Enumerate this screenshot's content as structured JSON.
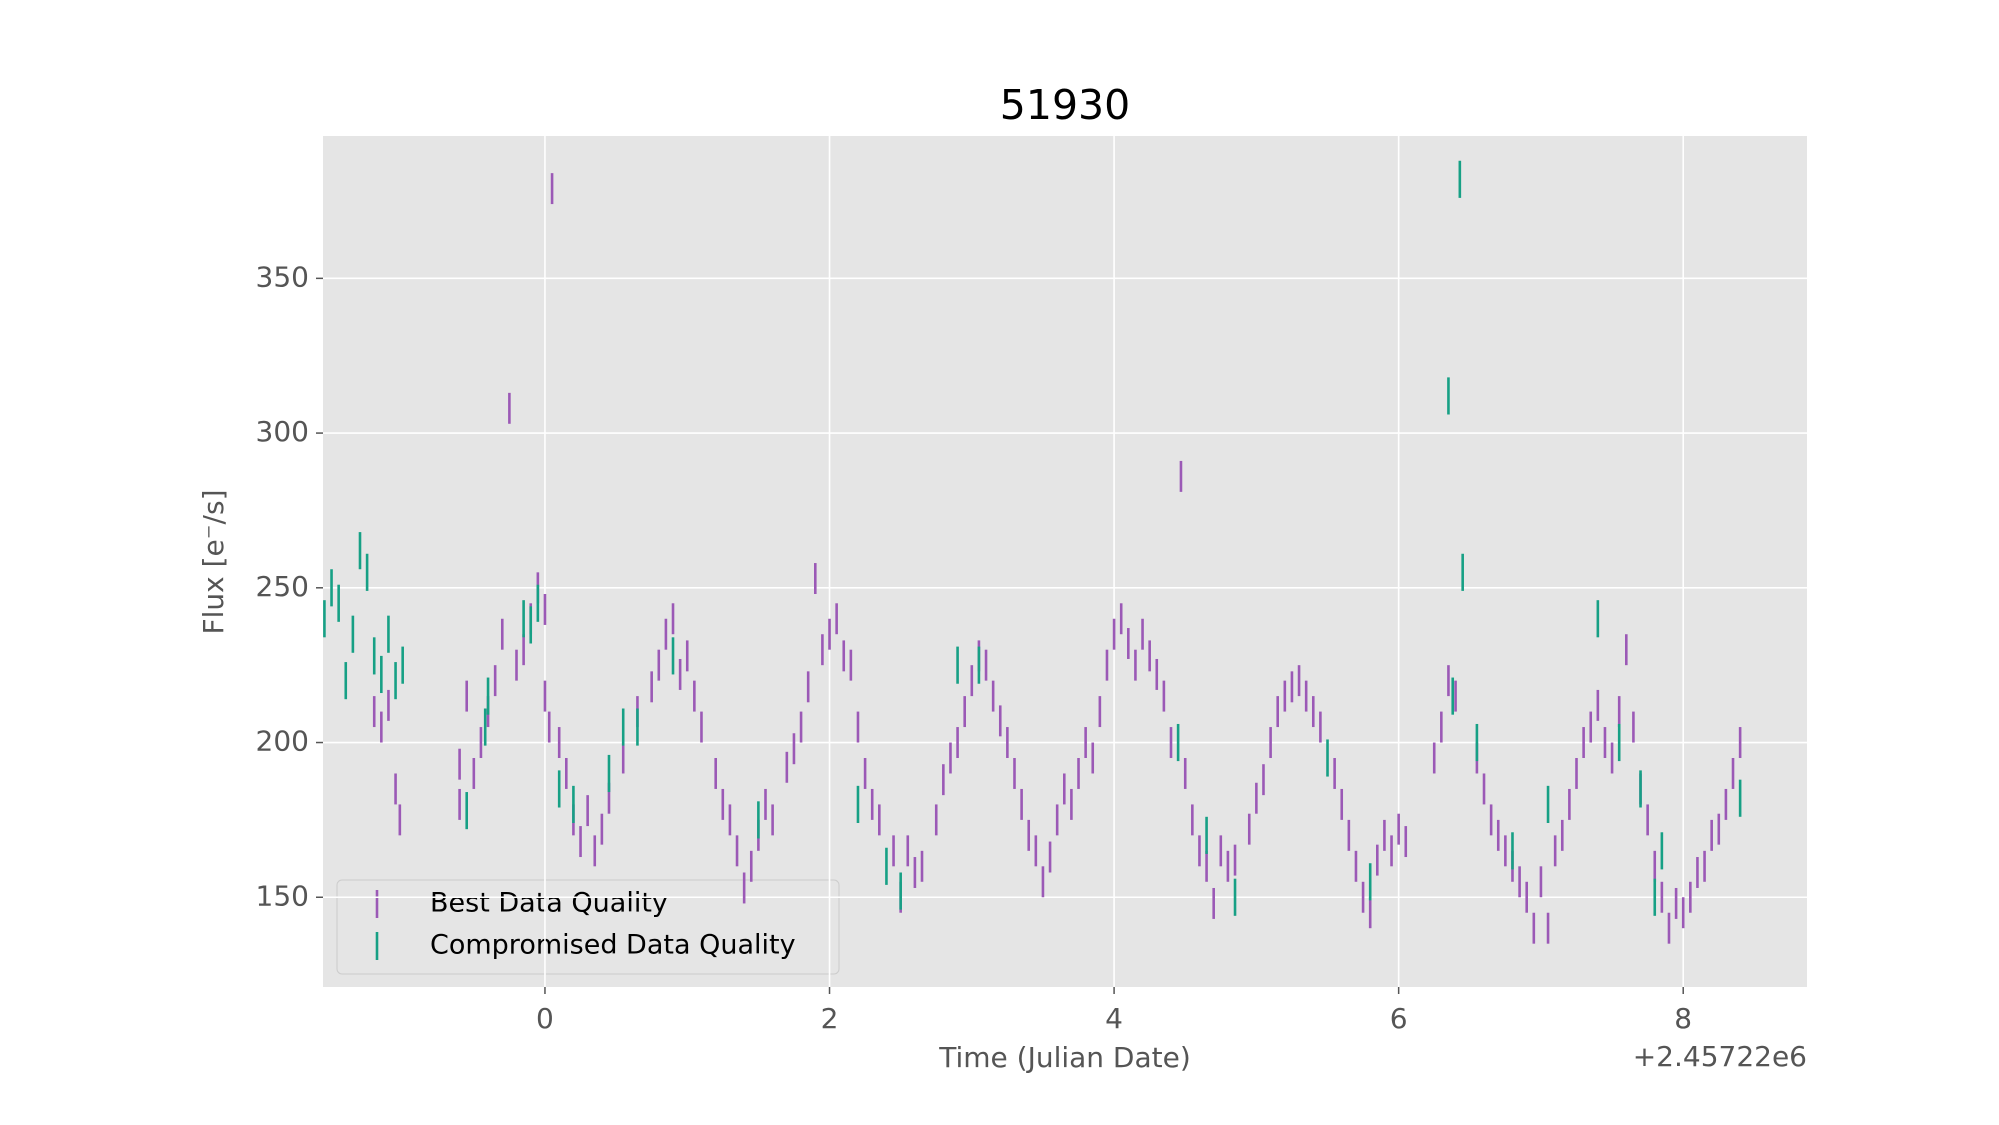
{
  "chart_data": {
    "type": "errorbar",
    "title": "51930",
    "x_label": "Time (Julian Date)",
    "y_label": "Flux [e⁻/s]",
    "x_offset_label": "+2.45722e6",
    "xlim": [
      -1.56,
      8.87
    ],
    "ylim": [
      121,
      396
    ],
    "xticks": [
      0,
      2,
      4,
      6,
      8
    ],
    "yticks": [
      150,
      200,
      250,
      300,
      350
    ],
    "grid": true,
    "legend": "lower left",
    "series": [
      {
        "name": "Best Data Quality",
        "color": "#9b59b6",
        "yerr": 5,
        "x": [
          -1.2,
          -1.15,
          -1.1,
          -1.05,
          -1.02,
          -0.6,
          -0.6,
          -0.55,
          -0.5,
          -0.45,
          -0.4,
          -0.35,
          -0.3,
          -0.25,
          -0.2,
          -0.15,
          -0.1,
          -0.05,
          0.0,
          0.0,
          0.03,
          0.05,
          0.1,
          0.15,
          0.2,
          0.25,
          0.3,
          0.35,
          0.4,
          0.45,
          0.55,
          0.65,
          0.75,
          0.8,
          0.85,
          0.9,
          0.95,
          1.0,
          1.05,
          1.1,
          1.2,
          1.25,
          1.3,
          1.35,
          1.4,
          1.45,
          1.5,
          1.55,
          1.6,
          1.7,
          1.75,
          1.8,
          1.85,
          1.9,
          1.95,
          2.0,
          2.05,
          2.1,
          2.15,
          2.2,
          2.25,
          2.3,
          2.35,
          2.45,
          2.5,
          2.55,
          2.6,
          2.65,
          2.75,
          2.8,
          2.85,
          2.9,
          2.95,
          3.0,
          3.05,
          3.1,
          3.15,
          3.2,
          3.25,
          3.3,
          3.35,
          3.4,
          3.45,
          3.5,
          3.55,
          3.6,
          3.65,
          3.7,
          3.75,
          3.8,
          3.85,
          3.9,
          3.95,
          4.0,
          4.05,
          4.1,
          4.15,
          4.2,
          4.25,
          4.3,
          4.35,
          4.4,
          4.47,
          4.5,
          4.55,
          4.6,
          4.65,
          4.7,
          4.75,
          4.8,
          4.85,
          4.95,
          5.0,
          5.05,
          5.1,
          5.15,
          5.2,
          5.25,
          5.3,
          5.35,
          5.4,
          5.45,
          5.55,
          5.6,
          5.65,
          5.7,
          5.75,
          5.8,
          5.85,
          5.9,
          5.95,
          6.0,
          6.05,
          6.25,
          6.3,
          6.35,
          6.4,
          6.55,
          6.6,
          6.65,
          6.7,
          6.75,
          6.8,
          6.85,
          6.9,
          6.95,
          7.0,
          7.05,
          7.1,
          7.15,
          7.2,
          7.25,
          7.3,
          7.35,
          7.4,
          7.45,
          7.5,
          7.55,
          7.6,
          7.65,
          7.7,
          7.75,
          7.8,
          7.85,
          7.9,
          7.95,
          8.0,
          8.05,
          8.1,
          8.15,
          8.2,
          8.25,
          8.3,
          8.35,
          8.4
        ],
        "values": [
          210,
          205,
          212,
          185,
          175,
          180,
          193,
          215,
          190,
          200,
          210,
          220,
          235,
          308,
          225,
          230,
          240,
          250,
          243,
          215,
          205,
          379,
          200,
          190,
          175,
          168,
          178,
          165,
          172,
          182,
          195,
          210,
          218,
          225,
          235,
          240,
          222,
          228,
          215,
          205,
          190,
          180,
          175,
          165,
          153,
          160,
          170,
          180,
          175,
          192,
          198,
          205,
          218,
          253,
          230,
          235,
          240,
          228,
          225,
          205,
          190,
          180,
          175,
          165,
          150,
          165,
          158,
          160,
          175,
          188,
          195,
          200,
          210,
          220,
          228,
          225,
          215,
          207,
          200,
          190,
          180,
          170,
          165,
          155,
          163,
          175,
          185,
          180,
          190,
          200,
          195,
          210,
          225,
          235,
          240,
          232,
          225,
          235,
          228,
          222,
          215,
          200,
          286,
          190,
          175,
          165,
          160,
          148,
          165,
          160,
          162,
          172,
          182,
          188,
          200,
          210,
          215,
          218,
          220,
          215,
          210,
          205,
          190,
          180,
          170,
          160,
          150,
          145,
          162,
          170,
          165,
          172,
          168,
          195,
          205,
          220,
          215,
          195,
          185,
          175,
          170,
          165,
          160,
          155,
          150,
          140,
          155,
          140,
          165,
          170,
          180,
          190,
          200,
          205,
          212,
          200,
          195,
          210,
          230,
          205,
          185,
          175,
          160,
          150,
          140,
          148,
          145,
          150,
          158,
          160,
          170,
          172,
          180,
          190,
          200
        ]
      },
      {
        "name": "Compromised Data Quality",
        "color": "#17a085",
        "yerr": 6,
        "x": [
          -1.55,
          -1.5,
          -1.45,
          -1.4,
          -1.35,
          -1.3,
          -1.25,
          -1.2,
          -1.15,
          -1.1,
          -1.05,
          -1.0,
          -0.55,
          -0.4,
          -0.42,
          -0.15,
          -0.1,
          -0.05,
          0.1,
          0.2,
          0.45,
          0.55,
          0.65,
          0.9,
          1.5,
          2.2,
          2.4,
          2.5,
          2.9,
          3.05,
          4.45,
          4.65,
          4.85,
          5.5,
          5.8,
          6.35,
          6.38,
          6.43,
          6.45,
          6.55,
          6.8,
          7.05,
          7.4,
          7.55,
          7.7,
          7.85,
          7.8,
          8.4
        ],
        "values": [
          240,
          250,
          245,
          220,
          235,
          262,
          255,
          228,
          222,
          235,
          220,
          225,
          178,
          215,
          205,
          240,
          238,
          245,
          185,
          180,
          190,
          205,
          205,
          228,
          175,
          180,
          160,
          152,
          225,
          225,
          200,
          170,
          150,
          195,
          155,
          312,
          215,
          382,
          255,
          200,
          165,
          180,
          240,
          200,
          185,
          165,
          150,
          182
        ]
      }
    ]
  }
}
